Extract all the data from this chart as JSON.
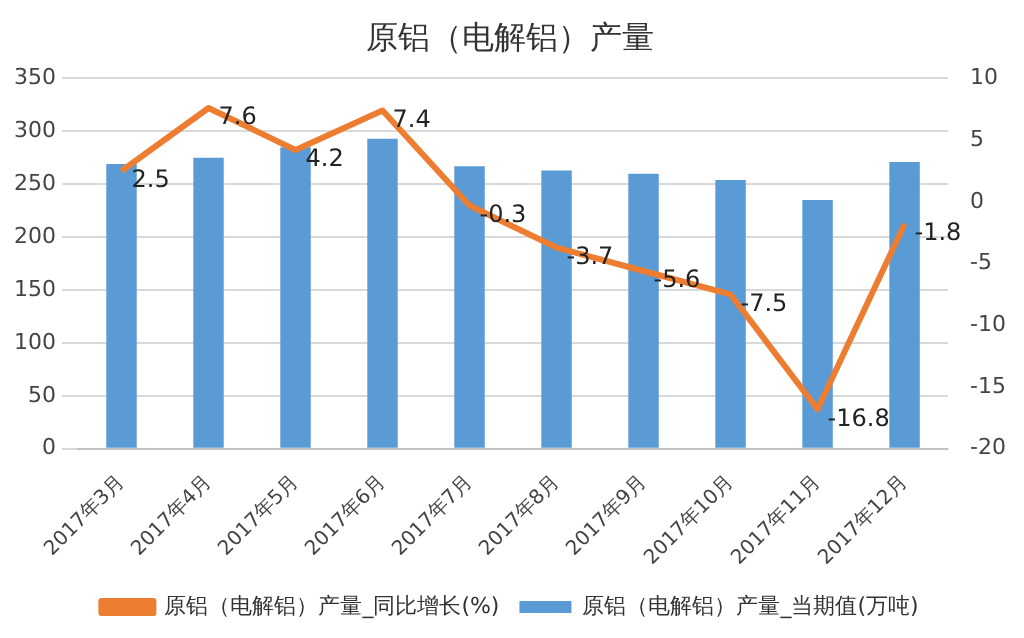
{
  "chart_data": {
    "type": "bar",
    "title": "原铝（电解铝）产量",
    "categories": [
      "2017年3月",
      "2017年4月",
      "2017年5月",
      "2017年6月",
      "2017年7月",
      "2017年8月",
      "2017年9月",
      "2017年10月",
      "2017年11月",
      "2017年12月"
    ],
    "series": [
      {
        "name": "原铝（电解铝）产量_当期值(万吨)",
        "color": "#5b9bd5",
        "values": [
          269,
          275,
          285,
          293,
          267,
          263,
          260,
          254,
          235,
          271
        ]
      },
      {
        "name": "原铝（电解铝）产量_同比增长(%)",
        "type": "line",
        "axis": "y2",
        "color": "#ed7d31",
        "values": [
          2.5,
          7.6,
          4.2,
          7.4,
          -0.3,
          -3.7,
          -5.6,
          -7.5,
          -16.8,
          -1.8
        ],
        "data_labels": true
      }
    ],
    "ylim": [
      0,
      350
    ],
    "yticks": [
      0,
      50,
      100,
      150,
      200,
      250,
      300,
      350
    ],
    "y2lim": [
      -20,
      10
    ],
    "y2ticks": [
      -20,
      -15,
      -10,
      -5,
      0,
      5,
      10
    ],
    "grid": "y",
    "legend": "bottom",
    "marker": "none"
  }
}
